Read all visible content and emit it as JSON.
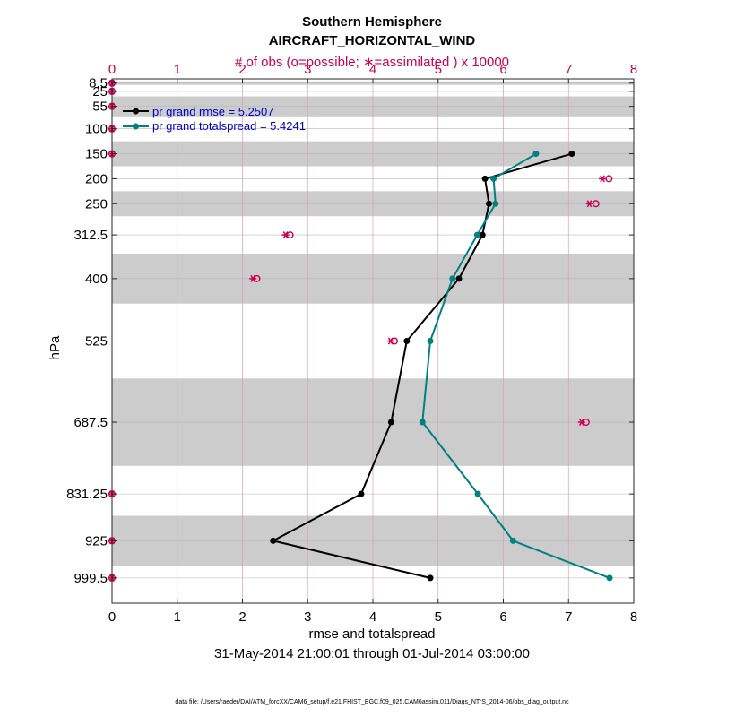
{
  "chart_data": {
    "type": "line",
    "title": "Southern Hemisphere",
    "subtitle": "AIRCRAFT_HORIZONTAL_WIND",
    "top_axis_label": "# of obs (o=possible; ∗=assimilated ) x 10000",
    "xlabel": "rmse and totalspread",
    "ylabel": "hPa",
    "date_range": "31-May-2014 21:00:01 through 01-Jul-2014 03:00:00",
    "footnote": "data file: /Users/raeder/DAI/ATM_forcXX/CAM6_setup/f.e21.FHIST_BGC.f09_025.CAM6assim.011/Diags_NTrS_2014-06/obs_diag_output.nc",
    "xlim": [
      0,
      8
    ],
    "top_xlim": [
      0,
      8
    ],
    "ylim": [
      1050,
      0
    ],
    "x_ticks": [
      "0",
      "1",
      "2",
      "3",
      "4",
      "5",
      "6",
      "7",
      "8"
    ],
    "top_x_ticks": [
      "0",
      "1",
      "2",
      "3",
      "4",
      "5",
      "6",
      "7",
      "8"
    ],
    "levels": [
      8.5,
      25,
      55,
      100,
      150,
      200,
      250,
      312.5,
      400,
      525,
      687.5,
      831.25,
      925,
      999.5
    ],
    "level_labels": [
      "8.5",
      "25",
      "55",
      "100",
      "150",
      "200",
      "250",
      "312.5",
      "400",
      "525",
      "687.5",
      "831.25",
      "925",
      "999.5"
    ],
    "bands": [
      [
        5,
        12
      ],
      [
        35,
        75
      ],
      [
        125,
        175
      ],
      [
        225,
        275
      ],
      [
        350,
        450
      ],
      [
        600,
        775
      ],
      [
        875,
        975
      ]
    ],
    "series": [
      {
        "name": "pr grand rmse",
        "legend": "pr grand rmse = 5.2507",
        "color": "#000000",
        "levels": [
          150,
          200,
          250,
          312.5,
          400,
          525,
          687.5,
          831.25,
          925,
          999.5
        ],
        "values": [
          7.05,
          5.72,
          5.78,
          5.68,
          5.32,
          4.52,
          4.28,
          3.82,
          2.47,
          4.88
        ]
      },
      {
        "name": "pr grand totalspread",
        "legend": "pr grand totalspread = 5.4241",
        "color": "#008080",
        "levels": [
          150,
          200,
          250,
          312.5,
          400,
          525,
          687.5,
          831.25,
          925,
          999.5
        ],
        "values": [
          6.5,
          5.85,
          5.88,
          5.6,
          5.22,
          4.88,
          4.76,
          5.61,
          6.15,
          7.63
        ]
      }
    ],
    "obs_counts": {
      "color": "#cc0055",
      "levels": [
        8.5,
        25,
        55,
        100,
        150,
        200,
        250,
        312.5,
        400,
        525,
        687.5,
        831.25,
        925,
        999.5
      ],
      "possible": [
        0,
        0,
        0,
        0,
        0,
        7.62,
        7.42,
        2.73,
        2.22,
        4.33,
        7.27,
        0,
        0,
        0
      ],
      "assimilated": [
        0,
        0,
        0,
        0,
        0,
        7.52,
        7.32,
        2.66,
        2.16,
        4.27,
        7.2,
        0,
        0,
        0
      ]
    }
  }
}
